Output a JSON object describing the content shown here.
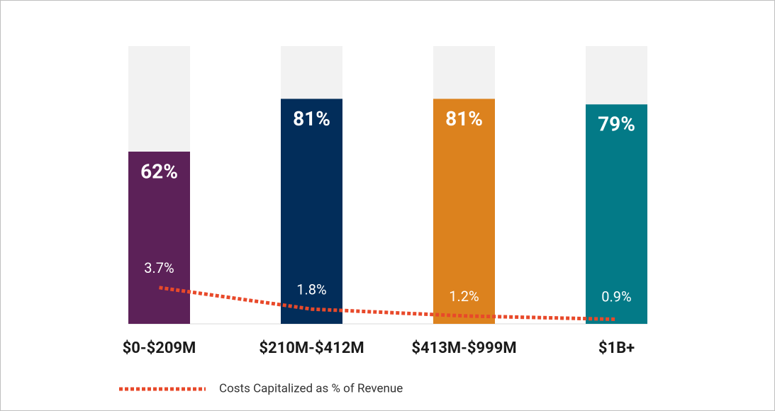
{
  "chart_data": {
    "type": "bar",
    "categories": [
      "$0-$209M",
      "$210M-$412M",
      "$413M-$999M",
      "$1B+"
    ],
    "series": [
      {
        "values": [
          62,
          81,
          81,
          79
        ],
        "value_labels": [
          "62%",
          "81%",
          "81%",
          "79%"
        ],
        "colors": [
          "#5c2158",
          "#022d5a",
          "#dc821e",
          "#037a87"
        ]
      },
      {
        "name": "Costs Capitalized as % of Revenue",
        "type": "line",
        "axis": "y2",
        "color": "#e8492a",
        "values": [
          3.7,
          1.8,
          1.2,
          0.9
        ],
        "value_labels": [
          "3.7%",
          "1.8%",
          "1.2%",
          "0.9%"
        ]
      }
    ],
    "ylim": [
      0,
      100
    ],
    "y2lim": [
      0.5,
      25
    ],
    "bar_background_color": "#f2f2f2",
    "legend": "bottom-left"
  }
}
